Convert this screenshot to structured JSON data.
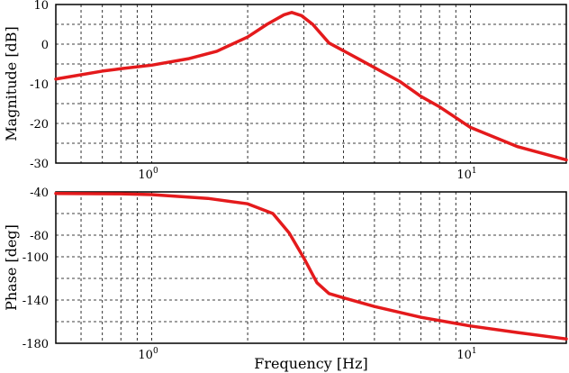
{
  "chart_data": [
    {
      "type": "line",
      "scale_x": "log",
      "grid": true,
      "xlim": [
        0.5,
        20
      ],
      "ylim": [
        -30,
        10
      ],
      "xlabel": "",
      "ylabel": "Magnitude [dB]",
      "x_ticks": [
        {
          "value": 1,
          "base": "10",
          "exp": "0"
        },
        {
          "value": 10,
          "base": "10",
          "exp": "1"
        }
      ],
      "y_ticks": [
        {
          "value": 10,
          "label": "10"
        },
        {
          "value": 0,
          "label": "0"
        },
        {
          "value": -10,
          "label": "-10"
        },
        {
          "value": -20,
          "label": "-20"
        },
        {
          "value": -30,
          "label": "-30"
        }
      ],
      "y_grid": [
        10,
        5,
        0,
        -5,
        -10,
        -15,
        -20,
        -25,
        -30
      ],
      "series": [
        {
          "color": "#e41a1c",
          "x": [
            0.5,
            0.7,
            0.8,
            1.0,
            1.3,
            1.6,
            2.0,
            2.3,
            2.6,
            2.75,
            2.95,
            3.2,
            3.6,
            4.5,
            6.0,
            7.0,
            8.0,
            10.0,
            14.0,
            20.0
          ],
          "y": [
            -8.8,
            -6.8,
            -6.2,
            -5.3,
            -3.7,
            -1.8,
            1.8,
            5.0,
            7.4,
            8.0,
            7.2,
            5.0,
            0.3,
            -3.9,
            -9.4,
            -13.2,
            -15.8,
            -21.0,
            -25.8,
            -29.2
          ]
        }
      ]
    },
    {
      "type": "line",
      "scale_x": "log",
      "grid": true,
      "xlim": [
        0.5,
        20
      ],
      "ylim": [
        -180,
        -40
      ],
      "xlabel": "Frequency [Hz]",
      "ylabel": "Phase [deg]",
      "x_ticks": [
        {
          "value": 1,
          "base": "10",
          "exp": "0"
        },
        {
          "value": 10,
          "base": "10",
          "exp": "1"
        }
      ],
      "y_ticks": [
        {
          "value": -40,
          "label": "-40"
        },
        {
          "value": -80,
          "label": "-80"
        },
        {
          "value": -100,
          "label": "-100"
        },
        {
          "value": -140,
          "label": "-140"
        },
        {
          "value": -180,
          "label": "-180"
        }
      ],
      "y_grid": [
        -40,
        -60,
        -80,
        -100,
        -120,
        -140,
        -160,
        -180
      ],
      "series": [
        {
          "color": "#e41a1c",
          "x": [
            0.5,
            0.8,
            1.0,
            1.5,
            2.0,
            2.4,
            2.7,
            3.0,
            3.3,
            3.6,
            4.0,
            5.0,
            7.0,
            10.0,
            14.0,
            20.0
          ],
          "y": [
            -41.5,
            -41.8,
            -42.5,
            -46.0,
            -51.0,
            -60.0,
            -78.0,
            -101.0,
            -124.0,
            -134.0,
            -138.0,
            -146.0,
            -156.0,
            -164.0,
            -170.0,
            -176.0
          ]
        }
      ]
    }
  ]
}
